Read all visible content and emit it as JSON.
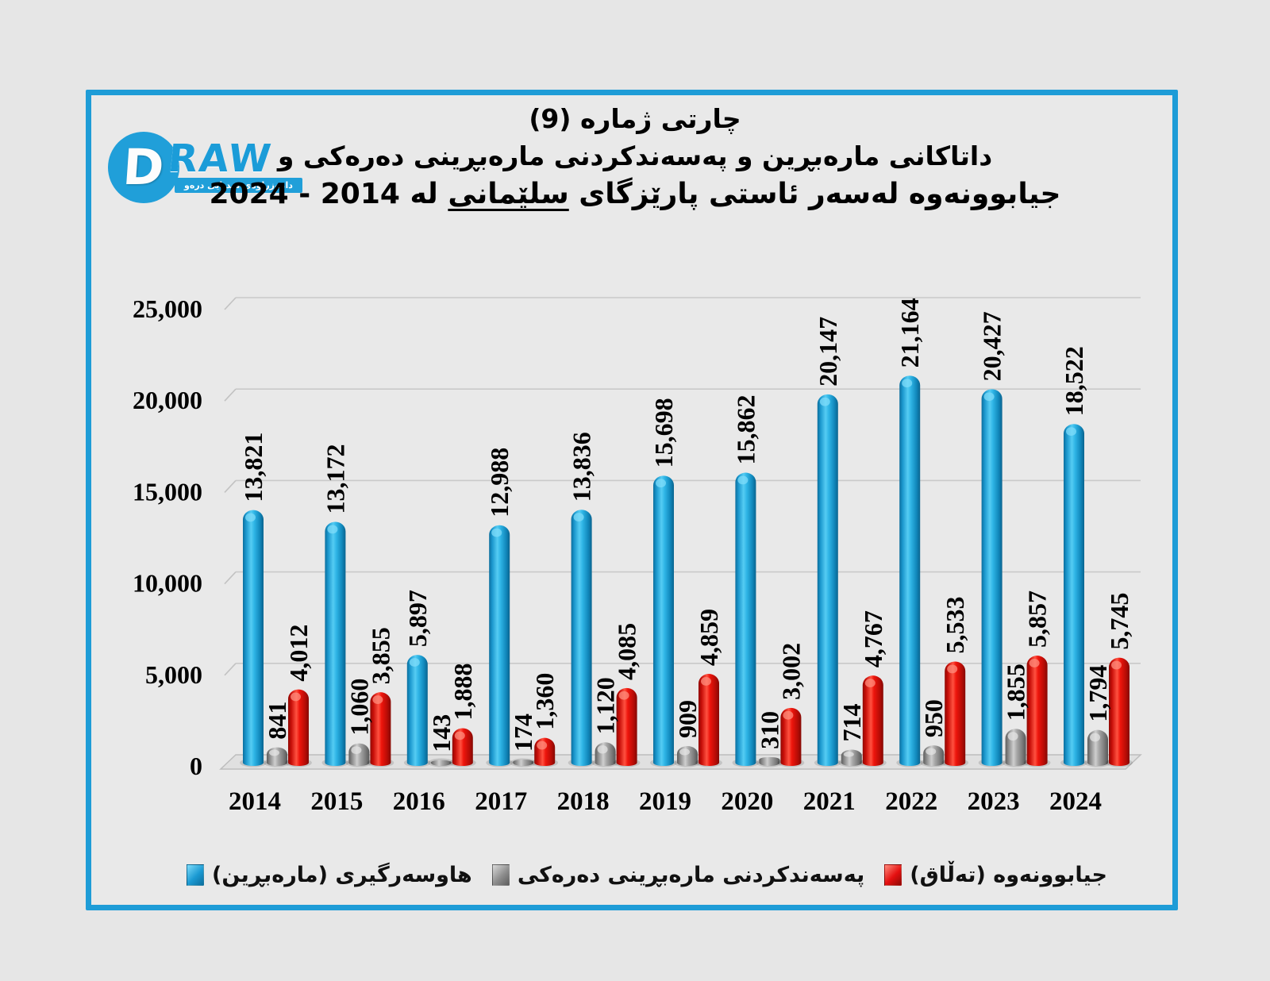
{
  "page": {
    "background": "#e6e6e6",
    "panel_border_color": "#1e9cd7",
    "panel_background": "#e9e9e9"
  },
  "logo": {
    "brand_d": "D",
    "brand_raw": "RAW",
    "tagline": "دامەزراوەی میدیایی درەو",
    "brand_color": "#209fd9"
  },
  "title": {
    "line1": "چارتی ژماره (9)",
    "line2": "داتاکانی مارەبڕین و پەسەندکردنی مارەبڕینی دەرەکی و",
    "line3_pre": "جیابوونەوە لەسەر ئاستی پارێزگای",
    "line3_underlined": "سلێمانی",
    "line3_post": "له 2014 - 2024"
  },
  "chart_data": {
    "type": "bar",
    "style": "3d-cylinder",
    "title": "چارتی ژماره (9) داتاکانی مارەبڕین و پەسەندکردنی مارەبڕینی دەرەکی و جیابوونەوە لەسەر ئاستی پارێزگای سلێمانی له 2014 - 2024",
    "categories": [
      "2014",
      "2015",
      "2016",
      "2017",
      "2018",
      "2019",
      "2020",
      "2021",
      "2022",
      "2023",
      "2024"
    ],
    "series": [
      {
        "name": "هاوسەرگیری (مارەبڕین)",
        "color": "#1b9ad3",
        "values": [
          13821,
          13172,
          5897,
          12988,
          13836,
          15698,
          15862,
          20147,
          21164,
          20427,
          18522
        ]
      },
      {
        "name": "پەسەندکردنی مارەبڕینی دەرەکی",
        "color": "#8e8e8e",
        "values": [
          841,
          1060,
          143,
          174,
          1120,
          909,
          310,
          714,
          950,
          1855,
          1794
        ]
      },
      {
        "name": "جیابوونەوە (تەڵاق)",
        "color": "#e51010",
        "values": [
          4012,
          3855,
          1888,
          1360,
          4085,
          4859,
          3002,
          4767,
          5533,
          5857,
          5745
        ]
      }
    ],
    "xlabel": "",
    "ylabel": "",
    "ylim": [
      0,
      25000
    ],
    "ytick_step": 5000,
    "yticks": [
      "0",
      "5,000",
      "10,000",
      "15,000",
      "20,000",
      "25,000"
    ],
    "grid": true,
    "data_labels": "rotated-90-thousands-separator",
    "legend_position": "bottom"
  }
}
